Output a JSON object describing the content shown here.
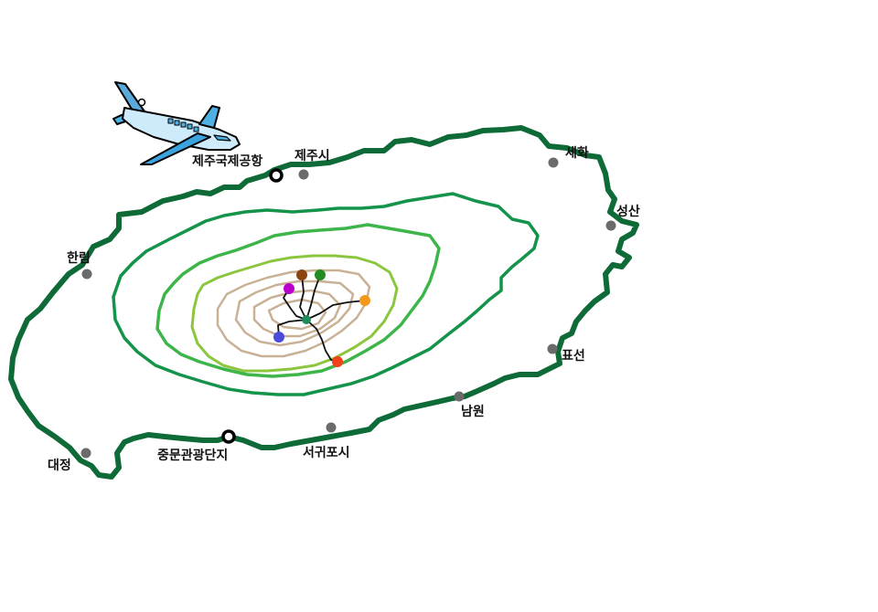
{
  "map": {
    "island_name": "",
    "cities": [
      {
        "id": "jeju-si",
        "name": "제주시"
      },
      {
        "id": "sehwa",
        "name": "세화"
      },
      {
        "id": "seongsan",
        "name": "성산"
      },
      {
        "id": "hallim",
        "name": "한림"
      },
      {
        "id": "pyoseon",
        "name": "표선"
      },
      {
        "id": "namwon",
        "name": "남원"
      },
      {
        "id": "seogwipo-si",
        "name": "서귀포시"
      },
      {
        "id": "daejeong",
        "name": "대정"
      }
    ],
    "landmarks": [
      {
        "id": "jeju-airport",
        "name": "제주국제공항"
      },
      {
        "id": "jungmun",
        "name": "중문관광단지"
      }
    ],
    "trail_markers": [
      {
        "id": "marker-brown",
        "color": "#8B4513"
      },
      {
        "id": "marker-green",
        "color": "#228B22"
      },
      {
        "id": "marker-purple",
        "color": "#BB00CC"
      },
      {
        "id": "marker-orange",
        "color": "#F39A1E"
      },
      {
        "id": "marker-teal",
        "color": "#1E8C5A"
      },
      {
        "id": "marker-blue",
        "color": "#4A4ADC"
      },
      {
        "id": "marker-red",
        "color": "#F2401A"
      }
    ],
    "colors": {
      "coastline": "#0E6B37",
      "contour_1": "#14934A",
      "contour_2": "#3DB54A",
      "contour_3": "#8CC63F",
      "summit_contour": "#C9B196",
      "city_dot": "#6b6b6b",
      "plane_body": "#9ED9F5"
    },
    "icons": [
      "airplane-icon",
      "city-dot-icon",
      "landmark-ring-icon"
    ]
  }
}
